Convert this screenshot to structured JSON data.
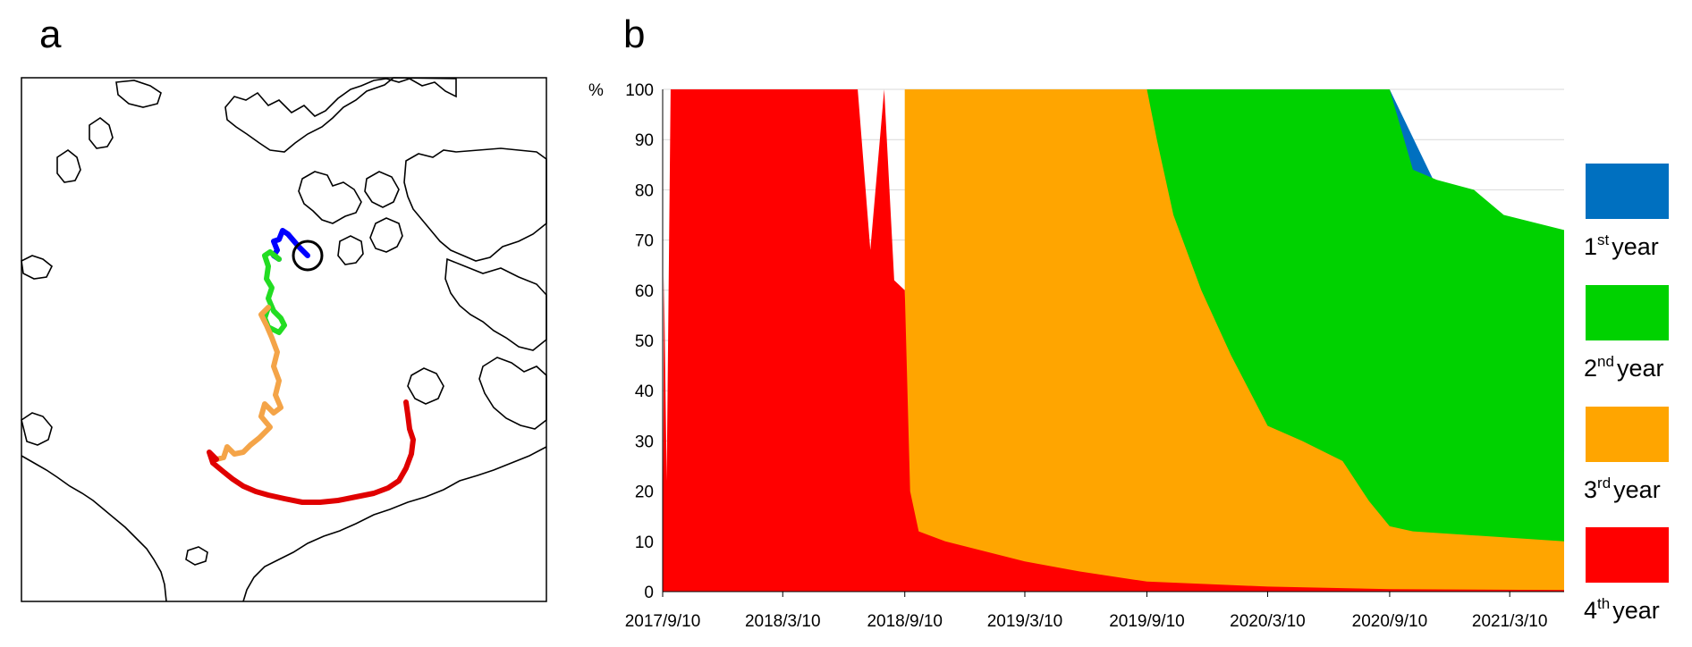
{
  "panel_labels": {
    "a": "a",
    "b": "b"
  },
  "map": {
    "track_colors": {
      "year1": "#0000ff",
      "year2": "#22dd22",
      "year3": "#f4a448",
      "year4": "#e00000"
    }
  },
  "chart_data": {
    "type": "area",
    "stacked": true,
    "ylabel": "%",
    "ylim": [
      0,
      100
    ],
    "yticks": [
      0,
      10,
      20,
      30,
      40,
      50,
      60,
      70,
      80,
      90,
      100
    ],
    "x_ticks": [
      "2017/9/10",
      "2018/3/10",
      "2018/9/10",
      "2019/3/10",
      "2019/9/10",
      "2020/3/10",
      "2020/9/10",
      "2021/3/10"
    ],
    "x_range": [
      "2017/9/10",
      "2021/5/31"
    ],
    "grid": true,
    "legend_position": "right",
    "series": [
      {
        "key": "year1",
        "name": "1st year",
        "name_base": "1",
        "name_sup": "st",
        "name_suffix": "year",
        "color": "#0070c0",
        "points": [
          [
            "2020/9/10",
            100
          ],
          [
            "2021/5/31",
            28
          ]
        ]
      },
      {
        "key": "year2",
        "name": "2nd year",
        "name_base": "2",
        "name_sup": "nd",
        "name_suffix": "year",
        "color": "#00d200",
        "points": [
          [
            "2019/9/10",
            100
          ],
          [
            "2020/9/10",
            100
          ],
          [
            "2020/10/15",
            84
          ],
          [
            "2020/11/20",
            82
          ],
          [
            "2021/1/15",
            80
          ],
          [
            "2021/3/1",
            75
          ],
          [
            "2021/5/31",
            72
          ]
        ]
      },
      {
        "key": "year3",
        "name": "3rd year",
        "name_base": "3",
        "name_sup": "rd",
        "name_suffix": "year",
        "color": "#ffa500",
        "points": [
          [
            "2018/9/10",
            100
          ],
          [
            "2019/9/10",
            100
          ],
          [
            "2019/9/25",
            90
          ],
          [
            "2019/10/20",
            75
          ],
          [
            "2019/12/1",
            60
          ],
          [
            "2020/1/15",
            47
          ],
          [
            "2020/3/10",
            33
          ],
          [
            "2020/5/1",
            30
          ],
          [
            "2020/7/1",
            26
          ],
          [
            "2020/8/10",
            18
          ],
          [
            "2020/9/10",
            13
          ],
          [
            "2020/10/15",
            12
          ],
          [
            "2021/5/31",
            10
          ]
        ]
      },
      {
        "key": "year4",
        "name": "4th year",
        "name_base": "4",
        "name_sup": "th",
        "name_suffix": "year",
        "color": "#ff0000",
        "points": [
          [
            "2017/9/10",
            0
          ],
          [
            "2017/9/12",
            63
          ],
          [
            "2017/9/16",
            22
          ],
          [
            "2017/9/22",
            100
          ],
          [
            "2018/7/1",
            100
          ],
          [
            "2018/7/20",
            68
          ],
          [
            "2018/8/10",
            100
          ],
          [
            "2018/8/25",
            62
          ],
          [
            "2018/9/10",
            60
          ],
          [
            "2018/9/18",
            20
          ],
          [
            "2018/10/1",
            12
          ],
          [
            "2018/11/10",
            10
          ],
          [
            "2019/3/10",
            6
          ],
          [
            "2019/6/1",
            4
          ],
          [
            "2019/9/10",
            2
          ],
          [
            "2020/3/10",
            1
          ],
          [
            "2020/9/10",
            0.5
          ],
          [
            "2021/5/31",
            0.3
          ]
        ]
      }
    ]
  }
}
